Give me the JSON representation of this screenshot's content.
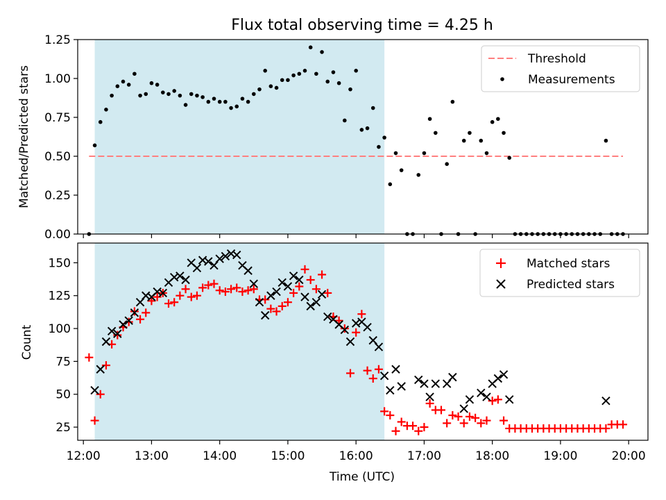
{
  "chart_data": [
    {
      "type": "scatter",
      "title": "Flux total observing time = 4.25 h",
      "xlabel": "",
      "ylabel": "Matched/Predicted stars",
      "xlim": [
        "11:55",
        "20:17"
      ],
      "ylim": [
        0,
        1.25
      ],
      "yticks": [
        "0.00",
        "0.25",
        "0.50",
        "0.75",
        "1.00",
        "1.25"
      ],
      "shaded_interval": [
        "12:10",
        "16:25"
      ],
      "shaded_color": "#add8e6",
      "legend_position": "top-right",
      "series": [
        {
          "name": "Threshold",
          "style": "dashed-line",
          "color": "#ff7f7f",
          "x": [
            "12:05",
            "19:55"
          ],
          "y": [
            0.5,
            0.5
          ]
        },
        {
          "name": "Measurements",
          "style": "dot",
          "color": "#000000",
          "x": [
            "12:05",
            "12:10",
            "12:15",
            "12:20",
            "12:25",
            "12:30",
            "12:35",
            "12:40",
            "12:45",
            "12:50",
            "12:55",
            "13:00",
            "13:05",
            "13:10",
            "13:15",
            "13:20",
            "13:25",
            "13:30",
            "13:35",
            "13:40",
            "13:45",
            "13:50",
            "13:55",
            "14:00",
            "14:05",
            "14:10",
            "14:15",
            "14:20",
            "14:25",
            "14:30",
            "14:35",
            "14:40",
            "14:45",
            "14:50",
            "14:55",
            "15:00",
            "15:05",
            "15:10",
            "15:15",
            "15:20",
            "15:25",
            "15:30",
            "15:35",
            "15:40",
            "15:45",
            "15:50",
            "15:55",
            "16:00",
            "16:05",
            "16:10",
            "16:15",
            "16:20",
            "16:25",
            "16:30",
            "16:35",
            "16:40",
            "16:45",
            "16:50",
            "16:55",
            "17:00",
            "17:05",
            "17:10",
            "17:15",
            "17:20",
            "17:25",
            "17:30",
            "17:35",
            "17:40",
            "17:45",
            "17:50",
            "17:55",
            "18:00",
            "18:05",
            "18:10",
            "18:15",
            "18:20",
            "18:25",
            "18:30",
            "18:35",
            "18:40",
            "18:45",
            "18:50",
            "18:55",
            "19:00",
            "19:05",
            "19:10",
            "19:15",
            "19:20",
            "19:25",
            "19:30",
            "19:35",
            "19:40",
            "19:45",
            "19:50",
            "19:55"
          ],
          "y": [
            0.0,
            0.57,
            0.72,
            0.8,
            0.89,
            0.95,
            0.98,
            0.96,
            1.03,
            0.89,
            0.9,
            0.97,
            0.96,
            0.91,
            0.9,
            0.92,
            0.89,
            0.83,
            0.9,
            0.89,
            0.88,
            0.85,
            0.87,
            0.85,
            0.85,
            0.81,
            0.82,
            0.87,
            0.85,
            0.9,
            0.93,
            1.05,
            0.95,
            0.94,
            0.99,
            0.99,
            1.02,
            1.03,
            1.05,
            1.2,
            1.03,
            1.17,
            0.98,
            1.04,
            0.97,
            0.73,
            0.93,
            1.05,
            0.67,
            0.68,
            0.81,
            0.56,
            0.62,
            0.32,
            0.52,
            0.41,
            0.0,
            0.0,
            0.38,
            0.52,
            0.74,
            0.65,
            0.0,
            0.45,
            0.85,
            0.0,
            0.6,
            0.65,
            0.0,
            0.6,
            0.52,
            0.72,
            0.74,
            0.65,
            0.49,
            0.0,
            0.0,
            0.0,
            0.0,
            0.0,
            0.0,
            0.0,
            0.0,
            0.0,
            0.0,
            0.0,
            0.0,
            0.0,
            0.0,
            0.0,
            0.0,
            0.6,
            0.0,
            0.0,
            0.0
          ]
        }
      ]
    },
    {
      "type": "scatter",
      "title": "",
      "xlabel": "Time (UTC)",
      "ylabel": "Count",
      "xlim": [
        "11:55",
        "20:17"
      ],
      "ylim": [
        15,
        165
      ],
      "yticks": [
        "25",
        "50",
        "75",
        "100",
        "125",
        "150"
      ],
      "xticks": [
        "12:00",
        "13:00",
        "14:00",
        "15:00",
        "16:00",
        "17:00",
        "18:00",
        "19:00",
        "20:00"
      ],
      "shaded_interval": [
        "12:10",
        "16:25"
      ],
      "shaded_color": "#add8e6",
      "legend_position": "top-right",
      "series": [
        {
          "name": "Matched stars",
          "marker": "plus",
          "color": "#ff0000",
          "x": [
            "12:05",
            "12:10",
            "12:15",
            "12:20",
            "12:25",
            "12:30",
            "12:35",
            "12:40",
            "12:45",
            "12:50",
            "12:55",
            "13:00",
            "13:05",
            "13:10",
            "13:15",
            "13:20",
            "13:25",
            "13:30",
            "13:35",
            "13:40",
            "13:45",
            "13:50",
            "13:55",
            "14:00",
            "14:05",
            "14:10",
            "14:15",
            "14:20",
            "14:25",
            "14:30",
            "14:35",
            "14:40",
            "14:45",
            "14:50",
            "14:55",
            "15:00",
            "15:05",
            "15:10",
            "15:15",
            "15:20",
            "15:25",
            "15:30",
            "15:35",
            "15:40",
            "15:45",
            "15:50",
            "15:55",
            "16:00",
            "16:05",
            "16:10",
            "16:15",
            "16:20",
            "16:25",
            "16:30",
            "16:35",
            "16:40",
            "16:45",
            "16:50",
            "16:55",
            "17:00",
            "17:05",
            "17:10",
            "17:15",
            "17:20",
            "17:25",
            "17:30",
            "17:35",
            "17:40",
            "17:45",
            "17:50",
            "17:55",
            "18:00",
            "18:05",
            "18:10",
            "18:15",
            "18:20",
            "18:25",
            "18:30",
            "18:35",
            "18:40",
            "18:45",
            "18:50",
            "18:55",
            "19:00",
            "19:05",
            "19:10",
            "19:15",
            "19:20",
            "19:25",
            "19:30",
            "19:35",
            "19:40",
            "19:45",
            "19:50",
            "19:55"
          ],
          "y": [
            78,
            30,
            50,
            72,
            88,
            95,
            101,
            105,
            113,
            107,
            112,
            121,
            124,
            127,
            119,
            120,
            125,
            130,
            124,
            125,
            131,
            133,
            134,
            129,
            128,
            130,
            131,
            128,
            129,
            130,
            122,
            122,
            115,
            113,
            117,
            120,
            127,
            132,
            145,
            137,
            130,
            141,
            127,
            109,
            106,
            100,
            66,
            97,
            111,
            68,
            62,
            69,
            37,
            34,
            22,
            29,
            26,
            26,
            22,
            25,
            43,
            38,
            38,
            28,
            34,
            33,
            28,
            33,
            32,
            28,
            30,
            45,
            46,
            30,
            24,
            24,
            24,
            24,
            24,
            24,
            24,
            24,
            24,
            24,
            24,
            24,
            24,
            24,
            24,
            24,
            24,
            24,
            27,
            27,
            27
          ]
        },
        {
          "name": "Predicted stars",
          "marker": "x",
          "color": "#000000",
          "x": [
            "12:10",
            "12:15",
            "12:20",
            "12:25",
            "12:30",
            "12:35",
            "12:40",
            "12:45",
            "12:50",
            "12:55",
            "13:00",
            "13:05",
            "13:10",
            "13:15",
            "13:20",
            "13:25",
            "13:30",
            "13:35",
            "13:40",
            "13:45",
            "13:50",
            "13:55",
            "14:00",
            "14:05",
            "14:10",
            "14:15",
            "14:20",
            "14:25",
            "14:30",
            "14:35",
            "14:40",
            "14:45",
            "14:50",
            "14:55",
            "15:00",
            "15:05",
            "15:10",
            "15:15",
            "15:20",
            "15:25",
            "15:30",
            "15:35",
            "15:40",
            "15:45",
            "15:50",
            "15:55",
            "16:00",
            "16:05",
            "16:10",
            "16:15",
            "16:20",
            "16:25",
            "16:30",
            "16:35",
            "16:40",
            "16:55",
            "17:00",
            "17:05",
            "17:10",
            "17:20",
            "17:25",
            "17:35",
            "17:40",
            "17:50",
            "17:55",
            "18:00",
            "18:05",
            "18:10",
            "18:15",
            "19:40"
          ],
          "y": [
            53,
            69,
            90,
            98,
            96,
            103,
            106,
            112,
            120,
            125,
            124,
            128,
            127,
            135,
            139,
            140,
            137,
            150,
            146,
            152,
            151,
            148,
            153,
            155,
            157,
            156,
            148,
            144,
            134,
            120,
            110,
            125,
            128,
            135,
            132,
            140,
            137,
            124,
            117,
            120,
            126,
            109,
            107,
            103,
            99,
            90,
            104,
            105,
            101,
            91,
            86,
            64,
            53,
            69,
            56,
            61,
            58,
            48,
            58,
            58,
            63,
            39,
            46,
            51,
            48,
            58,
            62,
            65,
            46,
            45
          ]
        }
      ]
    }
  ]
}
